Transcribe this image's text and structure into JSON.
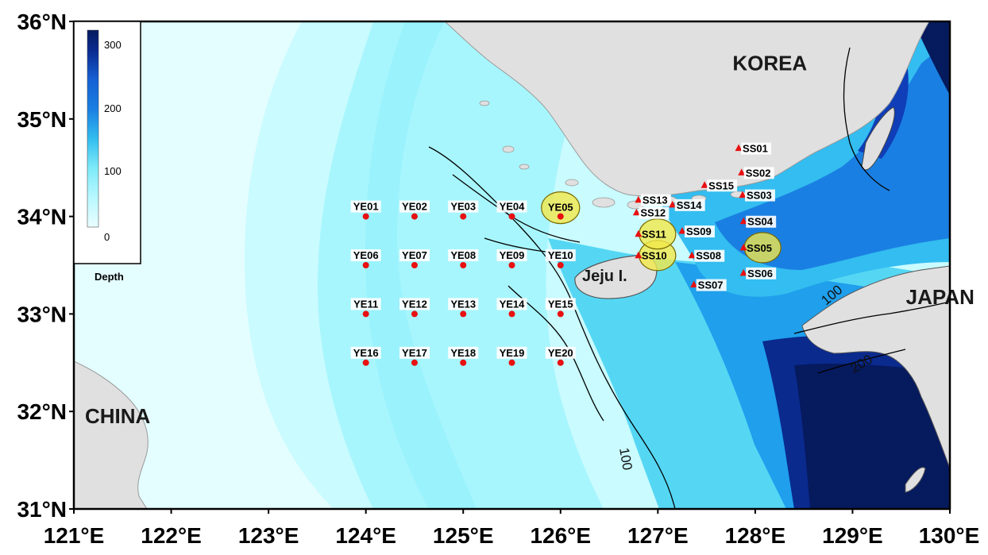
{
  "map": {
    "x_ticks": [
      "121°E",
      "122°E",
      "123°E",
      "124°E",
      "125°E",
      "126°E",
      "127°E",
      "128°E",
      "129°E",
      "130°E"
    ],
    "y_ticks": [
      "36°N",
      "35°N",
      "34°N",
      "33°N",
      "32°N",
      "31°N"
    ],
    "lon_range": [
      121,
      130
    ],
    "lat_range": [
      31,
      36
    ],
    "regions": [
      {
        "name": "KOREA",
        "lon": 128.15,
        "lat": 35.5
      },
      {
        "name": "JAPAN",
        "lon": 129.9,
        "lat": 33.1
      },
      {
        "name": "CHINA",
        "lon": 121.45,
        "lat": 31.88
      }
    ],
    "island_label": "Jeju I.",
    "contour_labels": [
      "100",
      "100",
      "200"
    ],
    "colorbar": {
      "title": "Depth",
      "ticks": [
        "300",
        "200",
        "100",
        "0"
      ],
      "range": [
        0,
        320
      ],
      "colors": [
        "#eafdff",
        "#c9fbff",
        "#a6f6fd",
        "#7eeaf8",
        "#55d7f4",
        "#33bdf0",
        "#1f9fec",
        "#1a7fe2",
        "#1660d4",
        "#0f3eb8",
        "#0a2a8e",
        "#061a5e"
      ]
    },
    "yellow_stations": [
      {
        "name": "YE01",
        "lon": 124.0,
        "lat": 34.0
      },
      {
        "name": "YE02",
        "lon": 124.5,
        "lat": 34.0
      },
      {
        "name": "YE03",
        "lon": 125.0,
        "lat": 34.0
      },
      {
        "name": "YE04",
        "lon": 125.5,
        "lat": 34.0
      },
      {
        "name": "YE05",
        "lon": 126.0,
        "lat": 34.0,
        "highlighted": true
      },
      {
        "name": "YE06",
        "lon": 124.0,
        "lat": 33.5
      },
      {
        "name": "YE07",
        "lon": 124.5,
        "lat": 33.5
      },
      {
        "name": "YE08",
        "lon": 125.0,
        "lat": 33.5
      },
      {
        "name": "YE09",
        "lon": 125.5,
        "lat": 33.5
      },
      {
        "name": "YE10",
        "lon": 126.0,
        "lat": 33.5
      },
      {
        "name": "YE11",
        "lon": 124.0,
        "lat": 33.0
      },
      {
        "name": "YE12",
        "lon": 124.5,
        "lat": 33.0
      },
      {
        "name": "YE13",
        "lon": 125.0,
        "lat": 33.0
      },
      {
        "name": "YE14",
        "lon": 125.5,
        "lat": 33.0
      },
      {
        "name": "YE15",
        "lon": 126.0,
        "lat": 33.0
      },
      {
        "name": "YE16",
        "lon": 124.0,
        "lat": 32.5
      },
      {
        "name": "YE17",
        "lon": 124.5,
        "lat": 32.5
      },
      {
        "name": "YE18",
        "lon": 125.0,
        "lat": 32.5
      },
      {
        "name": "YE19",
        "lon": 125.5,
        "lat": 32.5
      },
      {
        "name": "YE20",
        "lon": 126.0,
        "lat": 32.5
      }
    ],
    "south_stations": [
      {
        "name": "SS01",
        "lon": 127.83,
        "lat": 34.7
      },
      {
        "name": "SS02",
        "lon": 127.86,
        "lat": 34.45
      },
      {
        "name": "SS03",
        "lon": 127.87,
        "lat": 34.22
      },
      {
        "name": "SS04",
        "lon": 127.88,
        "lat": 33.95
      },
      {
        "name": "SS05",
        "lon": 127.88,
        "lat": 33.68,
        "highlighted": true
      },
      {
        "name": "SS06",
        "lon": 127.88,
        "lat": 33.42
      },
      {
        "name": "SS07",
        "lon": 127.37,
        "lat": 33.3
      },
      {
        "name": "SS08",
        "lon": 127.35,
        "lat": 33.6
      },
      {
        "name": "SS09",
        "lon": 127.25,
        "lat": 33.85
      },
      {
        "name": "SS10",
        "lon": 126.8,
        "lat": 33.6,
        "highlighted": true
      },
      {
        "name": "SS11",
        "lon": 126.8,
        "lat": 33.82,
        "highlighted": true
      },
      {
        "name": "SS12",
        "lon": 126.78,
        "lat": 34.04
      },
      {
        "name": "SS13",
        "lon": 126.8,
        "lat": 34.17
      },
      {
        "name": "SS14",
        "lon": 127.15,
        "lat": 34.12
      },
      {
        "name": "SS15",
        "lon": 127.48,
        "lat": 34.32
      }
    ]
  }
}
